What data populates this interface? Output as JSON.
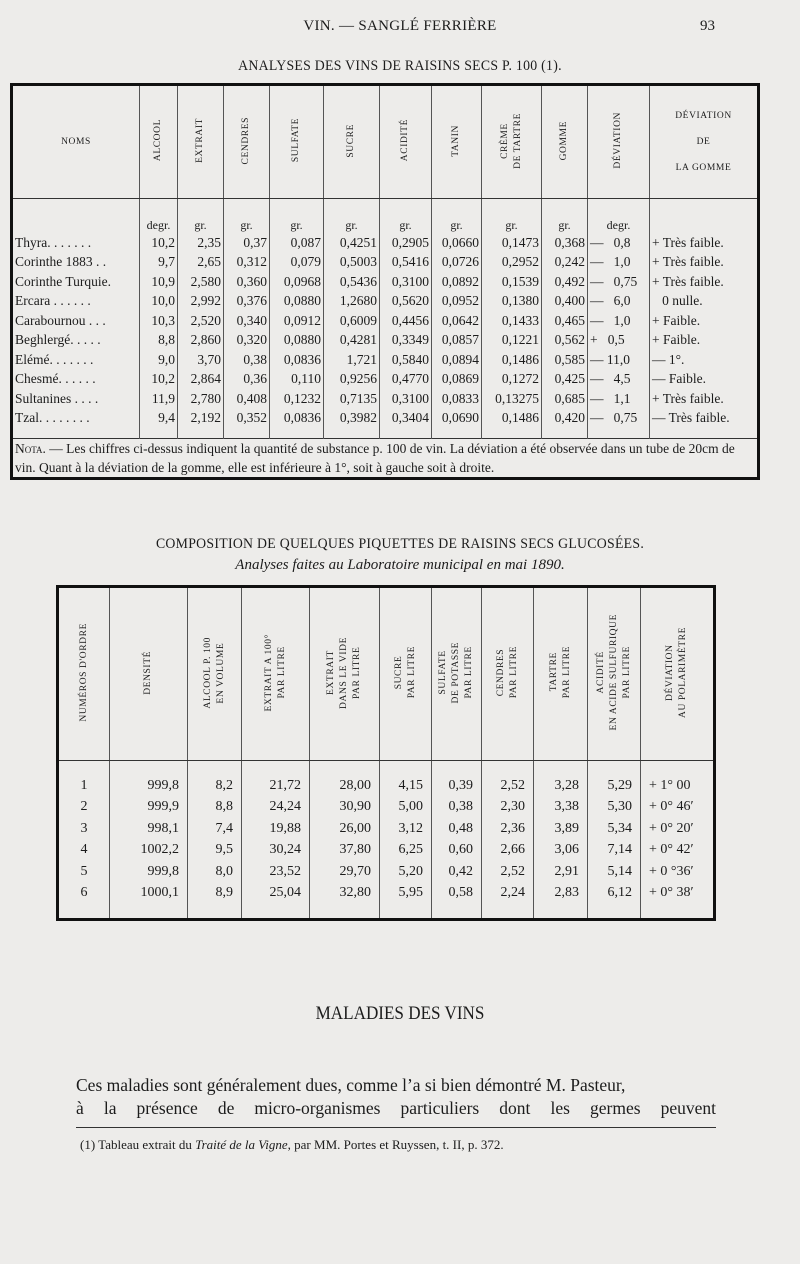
{
  "running_head": {
    "title": "VIN. — SANGLÉ FERRIÈRE",
    "page_number": "93"
  },
  "table1": {
    "caption": "ANALYSES DES VINS DE RAISINS SECS P. 100 (1).",
    "headers": [
      "NOMS",
      "ALCOOL",
      "EXTRAIT",
      "CENDRES",
      "SULFATE",
      "SUCRE",
      "ACIDITÉ",
      "TANIN",
      "CRÈME|DE TARTRE",
      "GOMME",
      "DÉVIATION",
      "DÉVIATION|DE|LA GOMME"
    ],
    "units": [
      "",
      "degr.",
      "gr.",
      "gr.",
      "gr.",
      "gr.",
      "gr.",
      "gr.",
      "gr.",
      "gr.",
      "degr.",
      ""
    ],
    "rows": [
      [
        "Thyra. . . . . . .",
        "10,2",
        "2,35",
        "0,37",
        "0,087",
        "0,4251",
        "0,2905",
        "0,0660",
        "0,1473",
        "0,368",
        "—   0,8",
        "+ Très faible."
      ],
      [
        "Corinthe 1883 . .",
        "9,7",
        "2,65",
        "0,312",
        "0,079",
        "0,5003",
        "0,5416",
        "0,0726",
        "0,2952",
        "0,242",
        "—   1,0",
        "+ Très faible."
      ],
      [
        "Corinthe Turquie.",
        "10,9",
        "2,580",
        "0,360",
        "0,0968",
        "0,5436",
        "0,3100",
        "0,0892",
        "0,1539",
        "0,492",
        "—   0,75",
        "+ Très faible."
      ],
      [
        "Ercara . . . . . .",
        "10,0",
        "2,992",
        "0,376",
        "0,0880",
        "1,2680",
        "0,5620",
        "0,0952",
        "0,1380",
        "0,400",
        "—   6,0",
        "   0 nulle."
      ],
      [
        "Carabournou . . .",
        "10,3",
        "2,520",
        "0,340",
        "0,0912",
        "0,6009",
        "0,4456",
        "0,0642",
        "0,1433",
        "0,465",
        "—   1,0",
        "+ Faible."
      ],
      [
        "Beghlergé. . . . .",
        "8,8",
        "2,860",
        "0,320",
        "0,0880",
        "0,4281",
        "0,3349",
        "0,0857",
        "0,1221",
        "0,562",
        "+   0,5",
        "+ Faible."
      ],
      [
        "Elémé. . . . . . .",
        "9,0",
        "3,70",
        "0,38",
        "0,0836",
        "1,721",
        "0,5840",
        "0,0894",
        "0,1486",
        "0,585",
        "— 11,0",
        "— 1°."
      ],
      [
        "Chesmé. . . . . .",
        "10,2",
        "2,864",
        "0,36",
        "0,110",
        "0,9256",
        "0,4770",
        "0,0869",
        "0,1272",
        "0,425",
        "—   4,5",
        "— Faible."
      ],
      [
        "Sultanines . . . .",
        "11,9",
        "2,780",
        "0,408",
        "0,1232",
        "0,7135",
        "0,3100",
        "0,0833",
        "0,13275",
        "0,685",
        "—   1,1",
        "+ Très faible."
      ],
      [
        "Tzal. . . . . . . .",
        "9,4",
        "2,192",
        "0,352",
        "0,0836",
        "0,3982",
        "0,3404",
        "0,0690",
        "0,1486",
        "0,420",
        "—   0,75",
        "— Très faible."
      ]
    ],
    "nota_label": "Nota.",
    "nota_text": " — Les chiffres ci-dessus indiquent la quantité de substance p. 100 de vin. La déviation a été observée dans un tube de 20cm de vin. Quant à la déviation de la gomme, elle est inférieure à 1°, soit à gauche soit à droite."
  },
  "table2": {
    "caption": "COMPOSITION DE QUELQUES PIQUETTES DE RAISINS SECS GLUCOSÉES.",
    "subcaption": "Analyses faites au Laboratoire municipal en mai 1890.",
    "headers": [
      "NUMÉROS D'ORDRE",
      "DENSITÉ",
      "ALCOOL P. 100|EN VOLUME",
      "EXTRAIT A 100°|PAR LITRE",
      "EXTRAIT|DANS LE VIDE|PAR LITRE",
      "SUCRE|PAR LITRE",
      "SULFATE|DE POTASSE|PAR LITRE",
      "CENDRES|PAR LITRE",
      "TARTRE|PAR LITRE",
      "ACIDITÉ|EN ACIDE SULFURIQUE|PAR LITRE",
      "DÉVIATION|AU POLARIMÈTRE"
    ],
    "rows": [
      [
        "1",
        "999,8",
        "8,2",
        "21,72",
        "28,00",
        "4,15",
        "0,39",
        "2,52",
        "3,28",
        "5,29",
        "+ 1° 00"
      ],
      [
        "2",
        "999,9",
        "8,8",
        "24,24",
        "30,90",
        "5,00",
        "0,38",
        "2,30",
        "3,38",
        "5,30",
        "+ 0° 46′"
      ],
      [
        "3",
        "998,1",
        "7,4",
        "19,88",
        "26,00",
        "3,12",
        "0,48",
        "2,36",
        "3,89",
        "5,34",
        "+ 0° 20′"
      ],
      [
        "4",
        "1002,2",
        "9,5",
        "30,24",
        "37,80",
        "6,25",
        "0,60",
        "2,66",
        "3,06",
        "7,14",
        "+ 0° 42′"
      ],
      [
        "5",
        "999,8",
        "8,0",
        "23,52",
        "29,70",
        "5,20",
        "0,42",
        "2,52",
        "2,91",
        "5,14",
        "+ 0 °36′"
      ],
      [
        "6",
        "1000,1",
        "8,9",
        "25,04",
        "32,80",
        "5,95",
        "0,58",
        "2,24",
        "2,83",
        "6,12",
        "+ 0° 38′"
      ]
    ]
  },
  "section": {
    "title": "MALADIES DES VINS",
    "line1": "Ces maladies sont généralement dues, comme l’a si bien démontré M. Pasteur,",
    "line2": "à la présence de micro-organismes particuliers dont les germes peuvent"
  },
  "footnote": {
    "prefix": "(1) Tableau extrait du ",
    "title": "Traité de la Vigne",
    "suffix": ", par MM. Portes et Ruyssen, t. II, p. 372."
  }
}
